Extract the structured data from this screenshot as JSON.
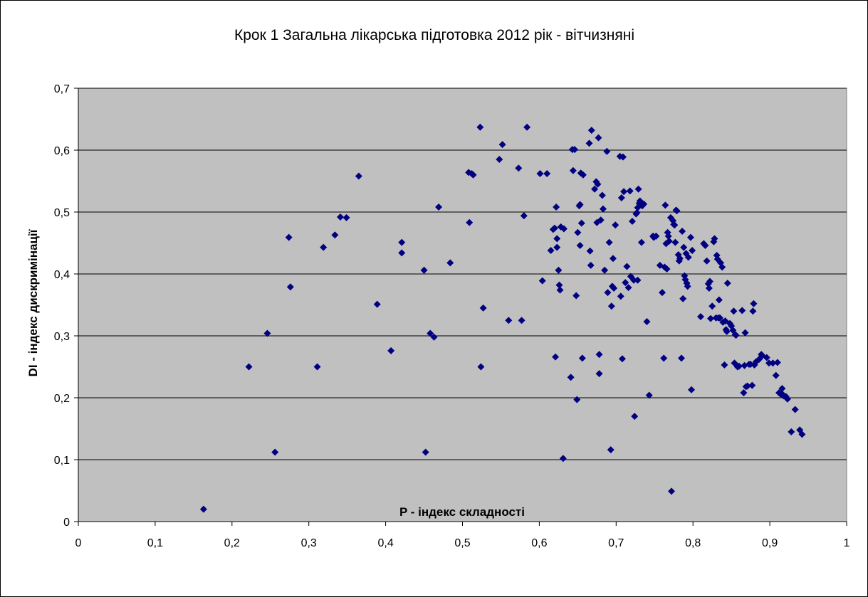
{
  "chart_data": {
    "type": "scatter",
    "title": "Крок 1 Загальна лікарська підготовка 2012 рік - вітчизняні",
    "xlabel": "P - індекс складності",
    "ylabel": "DI - індекс дискримінації",
    "xlim": [
      0,
      1
    ],
    "ylim": [
      0,
      0.7
    ],
    "x_ticks": [
      0,
      0.1,
      0.2,
      0.3,
      0.4,
      0.5,
      0.6,
      0.7,
      0.8,
      0.9,
      1
    ],
    "x_tick_labels": [
      "0",
      "0,1",
      "0,2",
      "0,3",
      "0,4",
      "0,5",
      "0,6",
      "0,7",
      "0,8",
      "0,9",
      "1"
    ],
    "y_ticks": [
      0,
      0.1,
      0.2,
      0.3,
      0.4,
      0.5,
      0.6,
      0.7
    ],
    "y_tick_labels": [
      "0",
      "0,1",
      "0,2",
      "0,3",
      "0,4",
      "0,5",
      "0,6",
      "0,7"
    ],
    "grid": "horizontal",
    "legend": "none",
    "colors": {
      "plot_background": "#c0c0c0",
      "marker": "#000080",
      "grid": "#000000"
    },
    "series": [
      {
        "marker": "diamond",
        "points": [
          [
            0.163,
            0.02
          ],
          [
            0.222,
            0.25
          ],
          [
            0.246,
            0.304
          ],
          [
            0.256,
            0.112
          ],
          [
            0.274,
            0.459
          ],
          [
            0.276,
            0.379
          ],
          [
            0.311,
            0.25
          ],
          [
            0.319,
            0.443
          ],
          [
            0.334,
            0.463
          ],
          [
            0.341,
            0.492
          ],
          [
            0.349,
            0.491
          ],
          [
            0.365,
            0.558
          ],
          [
            0.389,
            0.351
          ],
          [
            0.407,
            0.276
          ],
          [
            0.421,
            0.451
          ],
          [
            0.421,
            0.434
          ],
          [
            0.45,
            0.406
          ],
          [
            0.452,
            0.112
          ],
          [
            0.458,
            0.304
          ],
          [
            0.463,
            0.298
          ],
          [
            0.469,
            0.508
          ],
          [
            0.484,
            0.418
          ],
          [
            0.508,
            0.564
          ],
          [
            0.509,
            0.483
          ],
          [
            0.512,
            0.562
          ],
          [
            0.514,
            0.56
          ],
          [
            0.523,
            0.637
          ],
          [
            0.524,
            0.25
          ],
          [
            0.527,
            0.345
          ],
          [
            0.548,
            0.585
          ],
          [
            0.552,
            0.609
          ],
          [
            0.56,
            0.325
          ],
          [
            0.573,
            0.571
          ],
          [
            0.577,
            0.325
          ],
          [
            0.58,
            0.494
          ],
          [
            0.584,
            0.637
          ],
          [
            0.601,
            0.562
          ],
          [
            0.604,
            0.389
          ],
          [
            0.61,
            0.562
          ],
          [
            0.615,
            0.438
          ],
          [
            0.618,
            0.472
          ],
          [
            0.62,
            0.474
          ],
          [
            0.621,
            0.266
          ],
          [
            0.622,
            0.508
          ],
          [
            0.623,
            0.457
          ],
          [
            0.623,
            0.443
          ],
          [
            0.625,
            0.406
          ],
          [
            0.626,
            0.382
          ],
          [
            0.627,
            0.374
          ],
          [
            0.628,
            0.476
          ],
          [
            0.631,
            0.102
          ],
          [
            0.632,
            0.473
          ],
          [
            0.641,
            0.233
          ],
          [
            0.643,
            0.601
          ],
          [
            0.644,
            0.567
          ],
          [
            0.646,
            0.601
          ],
          [
            0.648,
            0.365
          ],
          [
            0.649,
            0.197
          ],
          [
            0.65,
            0.467
          ],
          [
            0.652,
            0.51
          ],
          [
            0.653,
            0.512
          ],
          [
            0.653,
            0.446
          ],
          [
            0.654,
            0.563
          ],
          [
            0.655,
            0.482
          ],
          [
            0.656,
            0.264
          ],
          [
            0.657,
            0.56
          ],
          [
            0.665,
            0.611
          ],
          [
            0.666,
            0.437
          ],
          [
            0.667,
            0.414
          ],
          [
            0.668,
            0.632
          ],
          [
            0.672,
            0.537
          ],
          [
            0.674,
            0.549
          ],
          [
            0.675,
            0.483
          ],
          [
            0.676,
            0.545
          ],
          [
            0.677,
            0.62
          ],
          [
            0.678,
            0.27
          ],
          [
            0.678,
            0.239
          ],
          [
            0.68,
            0.487
          ],
          [
            0.682,
            0.527
          ],
          [
            0.683,
            0.505
          ],
          [
            0.685,
            0.406
          ],
          [
            0.688,
            0.598
          ],
          [
            0.689,
            0.37
          ],
          [
            0.691,
            0.451
          ],
          [
            0.693,
            0.116
          ],
          [
            0.694,
            0.348
          ],
          [
            0.695,
            0.38
          ],
          [
            0.696,
            0.425
          ],
          [
            0.697,
            0.377
          ],
          [
            0.699,
            0.479
          ],
          [
            0.705,
            0.59
          ],
          [
            0.706,
            0.364
          ],
          [
            0.707,
            0.523
          ],
          [
            0.708,
            0.263
          ],
          [
            0.709,
            0.589
          ],
          [
            0.71,
            0.533
          ],
          [
            0.712,
            0.386
          ],
          [
            0.714,
            0.412
          ],
          [
            0.716,
            0.378
          ],
          [
            0.718,
            0.534
          ],
          [
            0.719,
            0.396
          ],
          [
            0.721,
            0.485
          ],
          [
            0.723,
            0.39
          ],
          [
            0.724,
            0.17
          ],
          [
            0.726,
            0.497
          ],
          [
            0.727,
            0.499
          ],
          [
            0.728,
            0.507
          ],
          [
            0.728,
            0.39
          ],
          [
            0.729,
            0.537
          ],
          [
            0.73,
            0.514
          ],
          [
            0.731,
            0.518
          ],
          [
            0.732,
            0.514
          ],
          [
            0.733,
            0.451
          ],
          [
            0.734,
            0.51
          ],
          [
            0.736,
            0.513
          ],
          [
            0.74,
            0.323
          ],
          [
            0.743,
            0.204
          ],
          [
            0.748,
            0.461
          ],
          [
            0.749,
            0.459
          ],
          [
            0.752,
            0.461
          ],
          [
            0.757,
            0.414
          ],
          [
            0.76,
            0.37
          ],
          [
            0.762,
            0.264
          ],
          [
            0.763,
            0.411
          ],
          [
            0.764,
            0.511
          ],
          [
            0.765,
            0.449
          ],
          [
            0.766,
            0.408
          ],
          [
            0.767,
            0.467
          ],
          [
            0.768,
            0.461
          ],
          [
            0.769,
            0.453
          ],
          [
            0.771,
            0.491
          ],
          [
            0.772,
            0.049
          ],
          [
            0.774,
            0.486
          ],
          [
            0.775,
            0.48
          ],
          [
            0.776,
            0.479
          ],
          [
            0.777,
            0.451
          ],
          [
            0.778,
            0.503
          ],
          [
            0.779,
            0.502
          ],
          [
            0.781,
            0.431
          ],
          [
            0.782,
            0.421
          ],
          [
            0.783,
            0.425
          ],
          [
            0.785,
            0.264
          ],
          [
            0.786,
            0.469
          ],
          [
            0.787,
            0.36
          ],
          [
            0.788,
            0.443
          ],
          [
            0.789,
            0.397
          ],
          [
            0.79,
            0.391
          ],
          [
            0.791,
            0.433
          ],
          [
            0.792,
            0.385
          ],
          [
            0.793,
            0.38
          ],
          [
            0.794,
            0.427
          ],
          [
            0.797,
            0.459
          ],
          [
            0.798,
            0.213
          ],
          [
            0.799,
            0.438
          ],
          [
            0.81,
            0.331
          ],
          [
            0.814,
            0.449
          ],
          [
            0.816,
            0.446
          ],
          [
            0.818,
            0.421
          ],
          [
            0.82,
            0.384
          ],
          [
            0.821,
            0.377
          ],
          [
            0.822,
            0.388
          ],
          [
            0.823,
            0.328
          ],
          [
            0.825,
            0.348
          ],
          [
            0.827,
            0.452
          ],
          [
            0.828,
            0.457
          ],
          [
            0.83,
            0.329
          ],
          [
            0.831,
            0.43
          ],
          [
            0.832,
            0.424
          ],
          [
            0.833,
            0.329
          ],
          [
            0.834,
            0.358
          ],
          [
            0.835,
            0.329
          ],
          [
            0.836,
            0.418
          ],
          [
            0.838,
            0.411
          ],
          [
            0.839,
            0.322
          ],
          [
            0.841,
            0.253
          ],
          [
            0.842,
            0.324
          ],
          [
            0.843,
            0.31
          ],
          [
            0.844,
            0.307
          ],
          [
            0.845,
            0.385
          ],
          [
            0.848,
            0.32
          ],
          [
            0.85,
            0.316
          ],
          [
            0.852,
            0.309
          ],
          [
            0.853,
            0.34
          ],
          [
            0.854,
            0.256
          ],
          [
            0.855,
            0.302
          ],
          [
            0.856,
            0.301
          ],
          [
            0.858,
            0.25
          ],
          [
            0.86,
            0.251
          ],
          [
            0.864,
            0.341
          ],
          [
            0.866,
            0.208
          ],
          [
            0.867,
            0.252
          ],
          [
            0.868,
            0.305
          ],
          [
            0.869,
            0.218
          ],
          [
            0.871,
            0.219
          ],
          [
            0.873,
            0.254
          ],
          [
            0.875,
            0.254
          ],
          [
            0.877,
            0.22
          ],
          [
            0.878,
            0.34
          ],
          [
            0.879,
            0.352
          ],
          [
            0.88,
            0.253
          ],
          [
            0.882,
            0.258
          ],
          [
            0.886,
            0.262
          ],
          [
            0.889,
            0.27
          ],
          [
            0.89,
            0.268
          ],
          [
            0.896,
            0.265
          ],
          [
            0.899,
            0.256
          ],
          [
            0.904,
            0.256
          ],
          [
            0.908,
            0.236
          ],
          [
            0.91,
            0.257
          ],
          [
            0.912,
            0.208
          ],
          [
            0.914,
            0.206
          ],
          [
            0.916,
            0.215
          ],
          [
            0.917,
            0.205
          ],
          [
            0.918,
            0.203
          ],
          [
            0.921,
            0.202
          ],
          [
            0.923,
            0.198
          ],
          [
            0.928,
            0.145
          ],
          [
            0.933,
            0.181
          ],
          [
            0.939,
            0.148
          ],
          [
            0.942,
            0.141
          ]
        ]
      }
    ]
  }
}
